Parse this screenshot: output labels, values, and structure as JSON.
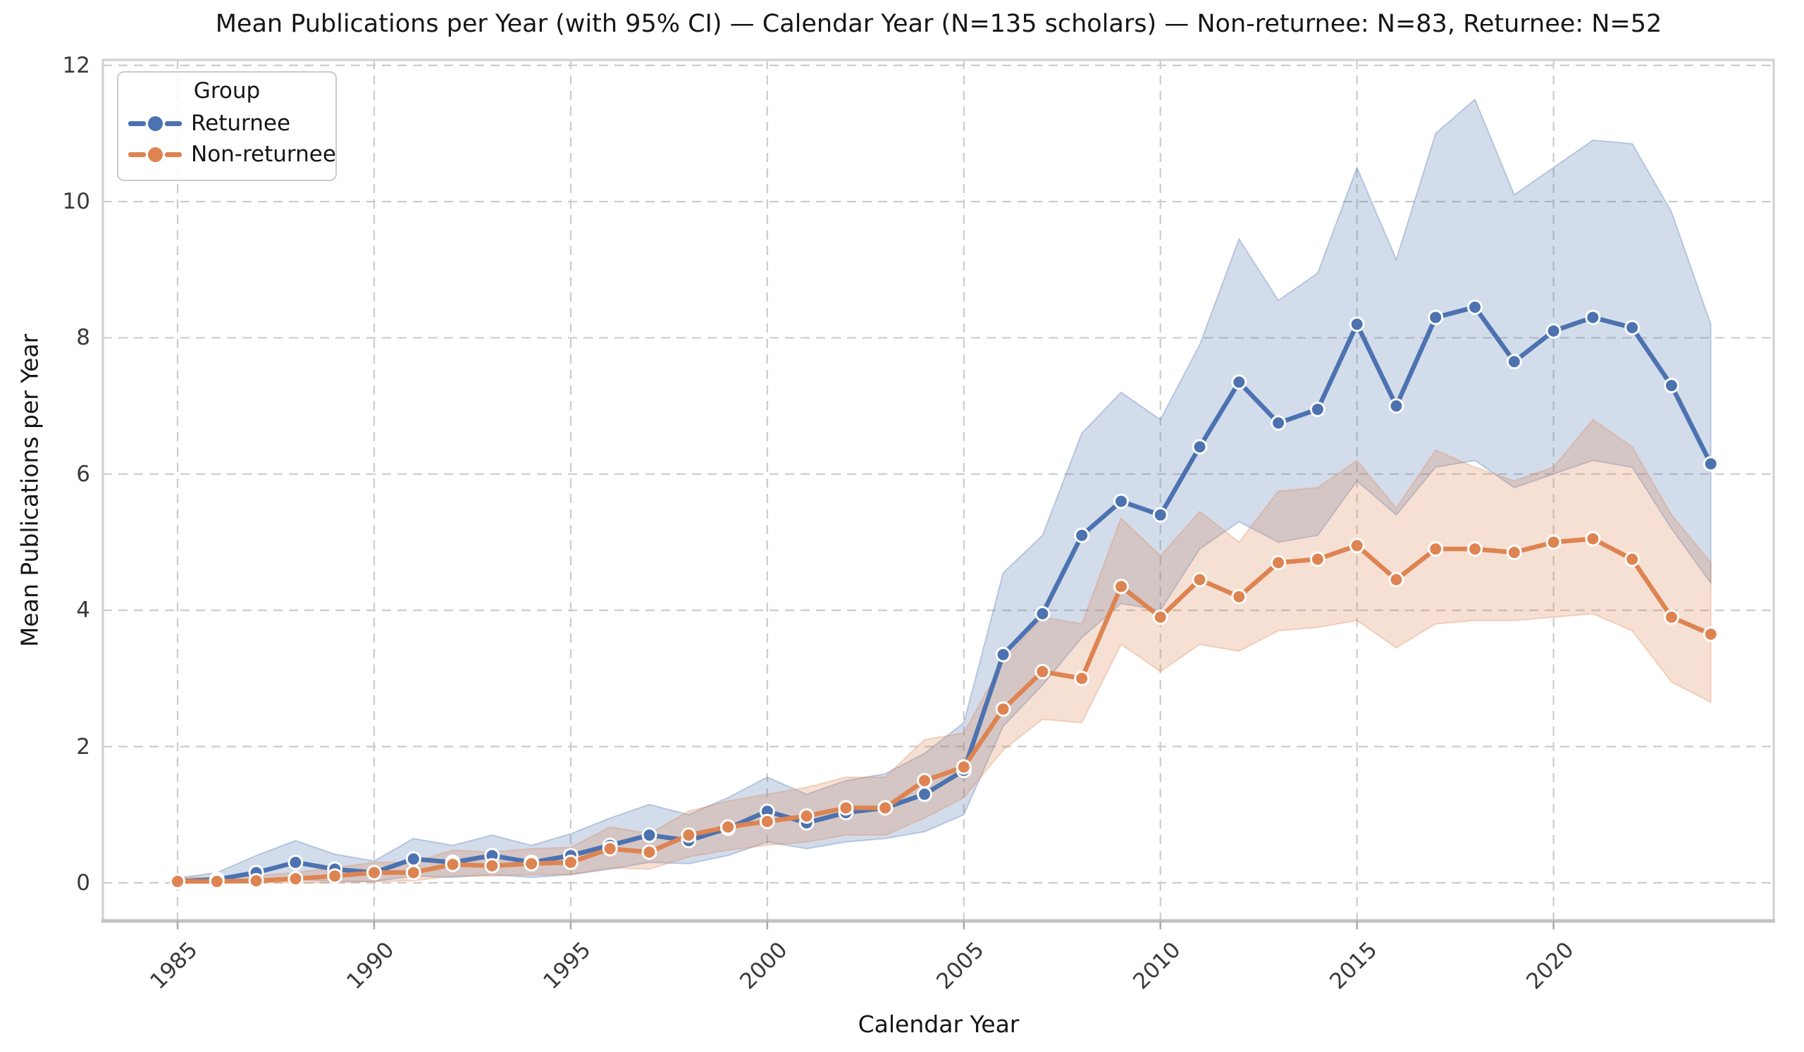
{
  "figure": {
    "title": "Mean Publications per Year (with 95% CI) — Calendar Year (N=135 scholars) — Non-returnee: N=83, Returnee: N=52",
    "xlabel": "Calendar Year",
    "ylabel": "Mean Publications per Year"
  },
  "legend": {
    "title": "Group",
    "entries": [
      {
        "label": "Returnee",
        "color": "#4C72B0"
      },
      {
        "label": "Non-returnee",
        "color": "#DD8452"
      }
    ]
  },
  "chart_data": {
    "type": "line",
    "title": "Mean Publications per Year (with 95% CI) — Calendar Year (N=135 scholars) — Non-returnee: N=83, Returnee: N=52",
    "xlabel": "Calendar Year",
    "ylabel": "Mean Publications per Year",
    "grid": true,
    "legend_position": "upper left",
    "x_ticks": [
      1985,
      1990,
      1995,
      2000,
      2005,
      2010,
      2015,
      2020
    ],
    "y_ticks": [
      0,
      2,
      4,
      6,
      8,
      10,
      12
    ],
    "xlim": [
      1983.1,
      2025.6
    ],
    "ylim": [
      -0.56,
      12.08
    ],
    "x": [
      1985,
      1986,
      1987,
      1988,
      1989,
      1990,
      1991,
      1992,
      1993,
      1994,
      1995,
      1996,
      1997,
      1998,
      1999,
      2000,
      2001,
      2002,
      2003,
      2004,
      2005,
      2006,
      2007,
      2008,
      2009,
      2010,
      2011,
      2012,
      2013,
      2014,
      2015,
      2016,
      2017,
      2018,
      2019,
      2020,
      2021,
      2022,
      2023,
      2024
    ],
    "series": [
      {
        "name": "Returnee",
        "color": "#4C72B0",
        "mean": [
          0.02,
          0.05,
          0.15,
          0.3,
          0.2,
          0.15,
          0.35,
          0.3,
          0.4,
          0.3,
          0.4,
          0.55,
          0.7,
          0.62,
          0.8,
          1.05,
          0.88,
          1.03,
          1.1,
          1.3,
          1.65,
          3.35,
          3.95,
          5.1,
          5.6,
          5.4,
          6.4,
          7.35,
          6.75,
          6.95,
          8.2,
          7.0,
          8.3,
          8.45,
          7.65,
          8.1,
          8.3,
          8.15,
          7.3,
          6.15
        ],
        "ci_lower": [
          0.0,
          0.0,
          0.0,
          0.05,
          0.02,
          0.02,
          0.1,
          0.08,
          0.12,
          0.08,
          0.12,
          0.2,
          0.3,
          0.28,
          0.4,
          0.6,
          0.5,
          0.6,
          0.65,
          0.75,
          1.0,
          2.3,
          2.9,
          3.6,
          4.1,
          4.0,
          4.9,
          5.3,
          5.0,
          5.1,
          5.9,
          5.4,
          6.1,
          6.2,
          5.8,
          6.0,
          6.2,
          6.1,
          5.2,
          4.4
        ],
        "ci_upper": [
          0.07,
          0.15,
          0.4,
          0.62,
          0.42,
          0.32,
          0.65,
          0.55,
          0.7,
          0.55,
          0.72,
          0.95,
          1.15,
          1.0,
          1.25,
          1.55,
          1.3,
          1.5,
          1.6,
          1.9,
          2.35,
          4.55,
          5.1,
          6.6,
          7.2,
          6.8,
          7.9,
          9.45,
          8.55,
          8.95,
          10.5,
          9.15,
          11.0,
          11.5,
          10.1,
          10.5,
          10.9,
          10.85,
          9.85,
          8.2
        ]
      },
      {
        "name": "Non-returnee",
        "color": "#DD8452",
        "mean": [
          0.02,
          0.02,
          0.03,
          0.06,
          0.1,
          0.15,
          0.15,
          0.27,
          0.25,
          0.28,
          0.3,
          0.5,
          0.45,
          0.7,
          0.82,
          0.9,
          0.98,
          1.1,
          1.1,
          1.5,
          1.7,
          2.55,
          3.1,
          3.0,
          4.35,
          3.9,
          4.45,
          4.2,
          4.7,
          4.75,
          4.95,
          4.45,
          4.9,
          4.9,
          4.85,
          5.0,
          5.05,
          4.75,
          3.9,
          3.65
        ],
        "ci_lower": [
          0.0,
          0.0,
          0.0,
          0.0,
          0.0,
          0.02,
          0.03,
          0.1,
          0.1,
          0.12,
          0.12,
          0.22,
          0.2,
          0.38,
          0.48,
          0.55,
          0.6,
          0.7,
          0.7,
          0.95,
          1.25,
          1.95,
          2.4,
          2.35,
          3.5,
          3.1,
          3.5,
          3.4,
          3.7,
          3.75,
          3.85,
          3.45,
          3.8,
          3.85,
          3.85,
          3.9,
          3.95,
          3.7,
          2.95,
          2.65
        ],
        "ci_upper": [
          0.07,
          0.08,
          0.1,
          0.15,
          0.22,
          0.3,
          0.3,
          0.48,
          0.45,
          0.5,
          0.52,
          0.82,
          0.72,
          1.05,
          1.2,
          1.3,
          1.4,
          1.55,
          1.55,
          2.1,
          2.2,
          3.25,
          3.9,
          3.8,
          5.35,
          4.8,
          5.45,
          5.0,
          5.75,
          5.8,
          6.2,
          5.5,
          6.35,
          6.1,
          5.9,
          6.1,
          6.8,
          6.4,
          5.4,
          4.7
        ]
      }
    ],
    "colors": {
      "grid": "#cccccc",
      "spine": "#cfcfcf",
      "bottom_spine": "#c2c2c2",
      "tick": "#aaaaaa",
      "tick_label": "#3a3a3a",
      "title": "#161616",
      "marker_edge": "#ffffff"
    },
    "band_opacity": 0.25
  }
}
